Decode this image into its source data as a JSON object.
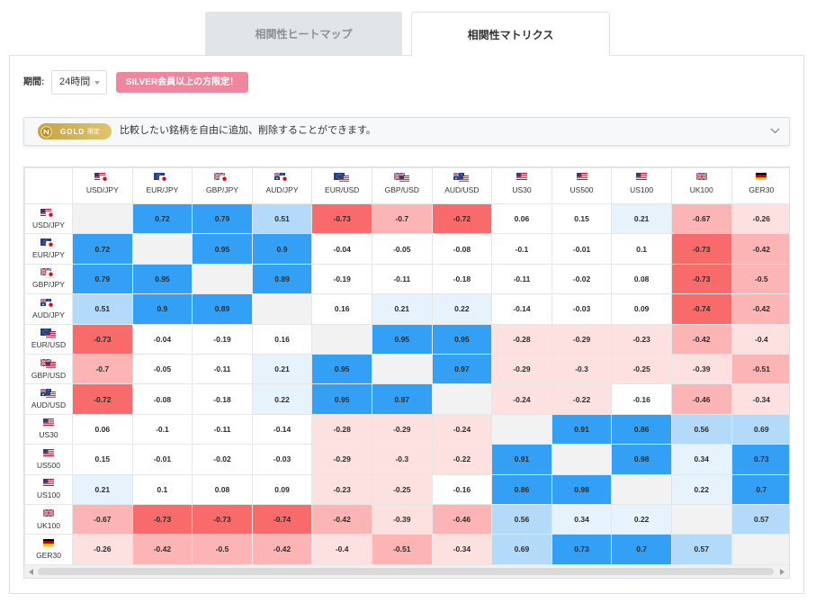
{
  "tabs": [
    {
      "label": "相関性ヒートマップ",
      "active": false
    },
    {
      "label": "相関性マトリクス",
      "active": true
    }
  ],
  "filter": {
    "period_label": "期間:",
    "period_value": "24時間",
    "period_icon": "caret-down-icon",
    "member_badge": "SILVER会員以上の方限定！"
  },
  "notice": {
    "badge_icon": "gold-coin-icon",
    "badge_text": "GOLD",
    "badge_suffix": "限定",
    "text": "比較したい銘柄を自由に追加、削除することができます。",
    "toggle_icon": "chevron-down-icon"
  },
  "matrix": {
    "symbols": [
      {
        "label": "USD/JPY",
        "flags": [
          "us-flag-icon",
          "jp-flag-icon"
        ]
      },
      {
        "label": "EUR/JPY",
        "flags": [
          "eu-flag-icon",
          "jp-flag-icon"
        ]
      },
      {
        "label": "GBP/JPY",
        "flags": [
          "gb-flag-icon",
          "jp-flag-icon"
        ]
      },
      {
        "label": "AUD/JPY",
        "flags": [
          "au-flag-icon",
          "jp-flag-icon"
        ]
      },
      {
        "label": "EUR/USD",
        "flags": [
          "eu-flag-icon",
          "us-flag-icon"
        ]
      },
      {
        "label": "GBP/USD",
        "flags": [
          "gb-flag-icon",
          "us-flag-icon"
        ]
      },
      {
        "label": "AUD/USD",
        "flags": [
          "au-flag-icon",
          "us-flag-icon"
        ]
      },
      {
        "label": "US30",
        "flags": [
          "us-flag-icon"
        ]
      },
      {
        "label": "US500",
        "flags": [
          "us-flag-icon"
        ]
      },
      {
        "label": "US100",
        "flags": [
          "us-flag-icon"
        ]
      },
      {
        "label": "UK100",
        "flags": [
          "gb-flag-icon"
        ]
      },
      {
        "label": "GER30",
        "flags": [
          "de-flag-icon"
        ]
      }
    ],
    "values": [
      [
        null,
        0.72,
        0.79,
        0.51,
        -0.73,
        -0.7,
        -0.72,
        0.06,
        0.15,
        0.21,
        -0.67,
        -0.26
      ],
      [
        0.72,
        null,
        0.95,
        0.9,
        -0.04,
        -0.05,
        -0.08,
        -0.1,
        -0.01,
        0.1,
        -0.73,
        -0.42
      ],
      [
        0.79,
        0.95,
        null,
        0.89,
        -0.19,
        -0.11,
        -0.18,
        -0.11,
        -0.02,
        0.08,
        -0.73,
        -0.5
      ],
      [
        0.51,
        0.9,
        0.89,
        null,
        0.16,
        0.21,
        0.22,
        -0.14,
        -0.03,
        0.09,
        -0.74,
        -0.42
      ],
      [
        -0.73,
        -0.04,
        -0.19,
        0.16,
        null,
        0.95,
        0.95,
        -0.28,
        -0.29,
        -0.23,
        -0.42,
        -0.4
      ],
      [
        -0.7,
        -0.05,
        -0.11,
        0.21,
        0.95,
        null,
        0.97,
        -0.29,
        -0.3,
        -0.25,
        -0.39,
        -0.51
      ],
      [
        -0.72,
        -0.08,
        -0.18,
        0.22,
        0.95,
        0.97,
        null,
        -0.24,
        -0.22,
        -0.16,
        -0.46,
        -0.34
      ],
      [
        0.06,
        -0.1,
        -0.11,
        -0.14,
        -0.28,
        -0.29,
        -0.24,
        null,
        0.91,
        0.86,
        0.56,
        0.69
      ],
      [
        0.15,
        -0.01,
        -0.02,
        -0.03,
        -0.29,
        -0.3,
        -0.22,
        0.91,
        null,
        0.98,
        0.34,
        0.73
      ],
      [
        0.21,
        0.1,
        0.08,
        0.09,
        -0.23,
        -0.25,
        -0.16,
        0.86,
        0.98,
        null,
        0.22,
        0.7
      ],
      [
        -0.67,
        -0.73,
        -0.73,
        -0.74,
        -0.42,
        -0.39,
        -0.46,
        0.56,
        0.34,
        0.22,
        null,
        0.57
      ],
      [
        -0.26,
        -0.42,
        -0.5,
        -0.42,
        -0.4,
        -0.51,
        -0.34,
        0.69,
        0.73,
        0.7,
        0.57,
        null
      ]
    ]
  },
  "cell_colors": {
    "diagonal": "#f2f2f2",
    "positive_strong": "#339ff5",
    "positive_medium": "#b3daf8",
    "positive_weak": "#e6f2fc",
    "neutral": "#ffffff",
    "negative_weak": "#fde0e0",
    "negative_medium": "#fcb4b4",
    "negative_strong": "#f96b6b"
  },
  "accent_colors": {
    "member_badge": "#f0869e",
    "gold_badge_start": "#c6a243",
    "gold_badge_end": "#dfc56e"
  }
}
